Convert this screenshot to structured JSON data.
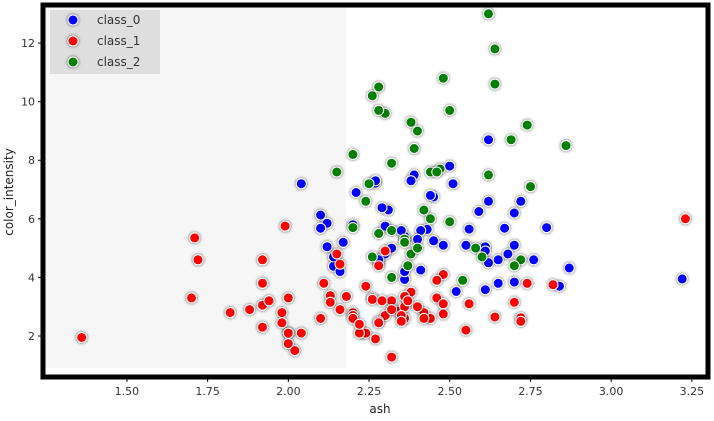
{
  "chart_data": {
    "type": "scatter",
    "xlabel": "ash",
    "ylabel": "color_intensity",
    "xlim": [
      1.24,
      3.3
    ],
    "ylim": [
      0.6,
      13.3
    ],
    "xticks": [
      1.5,
      1.75,
      2.0,
      2.25,
      2.5,
      2.75,
      3.0,
      3.25
    ],
    "xtick_labels": [
      "1.50",
      "1.75",
      "2.00",
      "2.25",
      "2.50",
      "2.75",
      "3.00",
      "3.25"
    ],
    "yticks": [
      2,
      4,
      6,
      8,
      10,
      12
    ],
    "ytick_labels": [
      "2",
      "4",
      "6",
      "8",
      "10",
      "12"
    ],
    "grid": false,
    "legend_position": "top-left",
    "series": [
      {
        "name": "class_0",
        "color": "#0000ff",
        "points": [
          [
            2.43,
            5.64
          ],
          [
            2.14,
            4.38
          ],
          [
            2.67,
            5.68
          ],
          [
            2.5,
            7.8
          ],
          [
            2.87,
            4.32
          ],
          [
            2.45,
            6.75
          ],
          [
            2.45,
            5.25
          ],
          [
            2.61,
            5.05
          ],
          [
            2.17,
            5.2
          ],
          [
            2.27,
            7.22
          ],
          [
            2.3,
            5.75
          ],
          [
            2.32,
            5.0
          ],
          [
            2.41,
            5.6
          ],
          [
            2.39,
            7.5
          ],
          [
            2.38,
            7.3
          ],
          [
            2.7,
            6.2
          ],
          [
            2.72,
            6.6
          ],
          [
            2.62,
            8.7
          ],
          [
            2.48,
            5.1
          ],
          [
            2.56,
            5.65
          ],
          [
            2.28,
            4.5
          ],
          [
            2.65,
            3.8
          ],
          [
            2.36,
            3.93
          ],
          [
            2.52,
            3.52
          ],
          [
            2.61,
            3.58
          ],
          [
            2.3,
            4.8
          ],
          [
            3.22,
            3.95
          ],
          [
            2.62,
            4.5
          ],
          [
            2.14,
            4.7
          ],
          [
            2.8,
            5.7
          ],
          [
            2.21,
            6.9
          ],
          [
            2.7,
            3.84
          ],
          [
            2.36,
            5.4
          ],
          [
            2.36,
            4.2
          ],
          [
            2.7,
            5.1
          ],
          [
            2.65,
            4.6
          ],
          [
            2.41,
            4.25
          ],
          [
            2.84,
            3.7
          ],
          [
            2.55,
            5.1
          ],
          [
            2.1,
            6.13
          ],
          [
            2.51,
            7.2
          ],
          [
            2.31,
            6.3
          ],
          [
            2.12,
            5.85
          ],
          [
            2.59,
            6.25
          ],
          [
            2.29,
            6.38
          ],
          [
            2.1,
            5.68
          ],
          [
            2.44,
            6.8
          ],
          [
            2.28,
            4.6
          ],
          [
            2.12,
            5.05
          ],
          [
            2.4,
            5.3
          ],
          [
            2.27,
            7.3
          ],
          [
            2.04,
            7.2
          ],
          [
            2.2,
            5.8
          ],
          [
            2.68,
            4.8
          ],
          [
            2.61,
            4.9
          ],
          [
            2.16,
            4.2
          ],
          [
            2.76,
            4.6
          ],
          [
            2.35,
            5.6
          ],
          [
            2.62,
            6.6
          ]
        ]
      },
      {
        "name": "class_1",
        "color": "#ff0000",
        "points": [
          [
            1.36,
            1.95
          ],
          [
            2.32,
            1.28
          ],
          [
            2.16,
            4.45
          ],
          [
            2.04,
            2.1
          ],
          [
            1.7,
            3.3
          ],
          [
            1.71,
            5.35
          ],
          [
            2.28,
            4.4
          ],
          [
            2.13,
            3.38
          ],
          [
            2.0,
            2.1
          ],
          [
            2.02,
            1.5
          ],
          [
            1.82,
            2.8
          ],
          [
            1.92,
            3.8
          ],
          [
            2.3,
            4.9
          ],
          [
            1.92,
            3.05
          ],
          [
            2.36,
            2.6
          ],
          [
            1.98,
            2.8
          ],
          [
            2.0,
            2.1
          ],
          [
            2.24,
            3.7
          ],
          [
            2.26,
            3.3
          ],
          [
            2.32,
            3.2
          ],
          [
            1.92,
            4.6
          ],
          [
            2.2,
            2.8
          ],
          [
            2.38,
            3.5
          ],
          [
            2.23,
            2.1
          ],
          [
            2.1,
            2.6
          ],
          [
            2.0,
            3.3
          ],
          [
            2.44,
            2.6
          ],
          [
            2.72,
            2.62
          ],
          [
            2.82,
            3.75
          ],
          [
            2.3,
            2.7
          ],
          [
            2.28,
            2.5
          ],
          [
            2.2,
            2.7
          ],
          [
            2.34,
            2.85
          ],
          [
            2.48,
            4.1
          ],
          [
            2.46,
            3.9
          ],
          [
            2.48,
            2.75
          ],
          [
            2.36,
            3.0
          ],
          [
            2.46,
            3.3
          ],
          [
            2.72,
            2.5
          ],
          [
            2.32,
            2.9
          ],
          [
            2.26,
            3.25
          ],
          [
            2.2,
            2.6
          ],
          [
            2.24,
            2.1
          ],
          [
            2.36,
            3.35
          ],
          [
            2.13,
            3.15
          ],
          [
            2.64,
            2.65
          ],
          [
            2.7,
            3.15
          ],
          [
            2.42,
            2.8
          ],
          [
            2.35,
            2.7
          ],
          [
            2.16,
            2.9
          ],
          [
            2.56,
            3.1
          ],
          [
            2.18,
            3.35
          ],
          [
            3.23,
            6.0
          ],
          [
            2.28,
            2.45
          ],
          [
            2.27,
            1.9
          ],
          [
            2.22,
            2.1
          ],
          [
            2.55,
            2.2
          ],
          [
            1.72,
            4.6
          ],
          [
            2.29,
            3.2
          ],
          [
            2.4,
            3.0
          ],
          [
            1.88,
            2.9
          ],
          [
            1.94,
            3.2
          ],
          [
            2.22,
            2.4
          ],
          [
            2.42,
            2.6
          ],
          [
            1.92,
            2.3
          ],
          [
            2.11,
            3.8
          ],
          [
            2.35,
            2.5
          ],
          [
            1.98,
            2.45
          ],
          [
            2.74,
            3.8
          ],
          [
            2.48,
            3.1
          ],
          [
            2.15,
            4.8
          ],
          [
            1.99,
            5.75
          ],
          [
            2.0,
            1.74
          ],
          [
            2.37,
            3.2
          ]
        ]
      },
      {
        "name": "class_2",
        "color": "#008000",
        "points": [
          [
            2.26,
            10.2
          ],
          [
            2.3,
            9.6
          ],
          [
            2.25,
            7.2
          ],
          [
            2.28,
            10.5
          ],
          [
            2.38,
            9.3
          ],
          [
            2.64,
            10.6
          ],
          [
            2.5,
            9.7
          ],
          [
            2.64,
            11.8
          ],
          [
            2.74,
            9.2
          ],
          [
            2.48,
            10.8
          ],
          [
            2.4,
            9.0
          ],
          [
            2.32,
            7.9
          ],
          [
            2.62,
            13.0
          ],
          [
            2.15,
            7.6
          ],
          [
            2.2,
            8.2
          ],
          [
            2.39,
            8.4
          ],
          [
            2.44,
            7.6
          ],
          [
            2.24,
            6.6
          ],
          [
            2.62,
            7.5
          ],
          [
            2.86,
            8.5
          ],
          [
            2.75,
            7.1
          ],
          [
            2.69,
            8.7
          ],
          [
            2.47,
            7.7
          ],
          [
            2.38,
            4.8
          ],
          [
            2.32,
            4.0
          ],
          [
            2.4,
            5.0
          ],
          [
            2.2,
            5.7
          ],
          [
            2.36,
            5.3
          ],
          [
            2.5,
            5.9
          ],
          [
            2.58,
            5.0
          ],
          [
            2.32,
            5.6
          ],
          [
            2.36,
            5.2
          ],
          [
            2.44,
            6.0
          ],
          [
            2.28,
            5.5
          ],
          [
            2.26,
            4.7
          ],
          [
            2.42,
            6.3
          ],
          [
            2.6,
            4.7
          ],
          [
            2.72,
            4.6
          ],
          [
            2.54,
            3.9
          ],
          [
            2.7,
            4.4
          ],
          [
            2.46,
            7.6
          ],
          [
            2.28,
            9.7
          ],
          [
            2.37,
            4.4
          ]
        ]
      }
    ]
  }
}
